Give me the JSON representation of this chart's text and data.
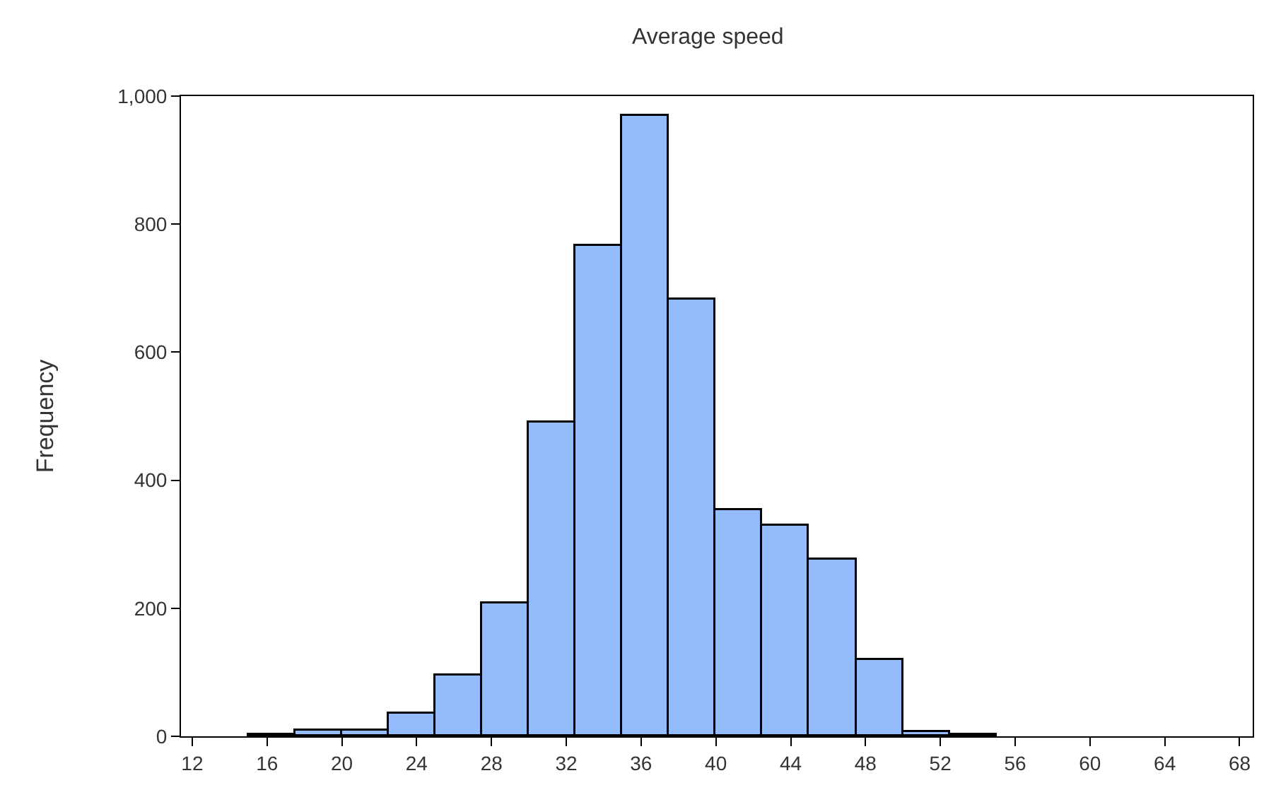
{
  "chart_data": {
    "type": "histogram",
    "title": "Average speed",
    "ylabel": "Frequency",
    "bins": [
      15,
      17.5,
      20,
      22.5,
      25,
      27.5,
      30,
      32.5,
      35,
      37.5,
      40,
      42.5,
      45,
      47.5,
      50,
      52.5,
      55
    ],
    "values": [
      3,
      9,
      9,
      35,
      94,
      208,
      489,
      767,
      970,
      682,
      354,
      329,
      276,
      120,
      6,
      2
    ],
    "color": "#94bbfb",
    "xlim": [
      11.4,
      68.7
    ],
    "xticks": [
      12,
      16,
      20,
      24,
      28,
      32,
      36,
      40,
      44,
      48,
      52,
      56,
      60,
      64,
      68
    ],
    "ylim": [
      0,
      1000
    ],
    "yticks": [
      0,
      200,
      400,
      600,
      800,
      {
        "value": 1000,
        "label": "1,000"
      }
    ]
  }
}
